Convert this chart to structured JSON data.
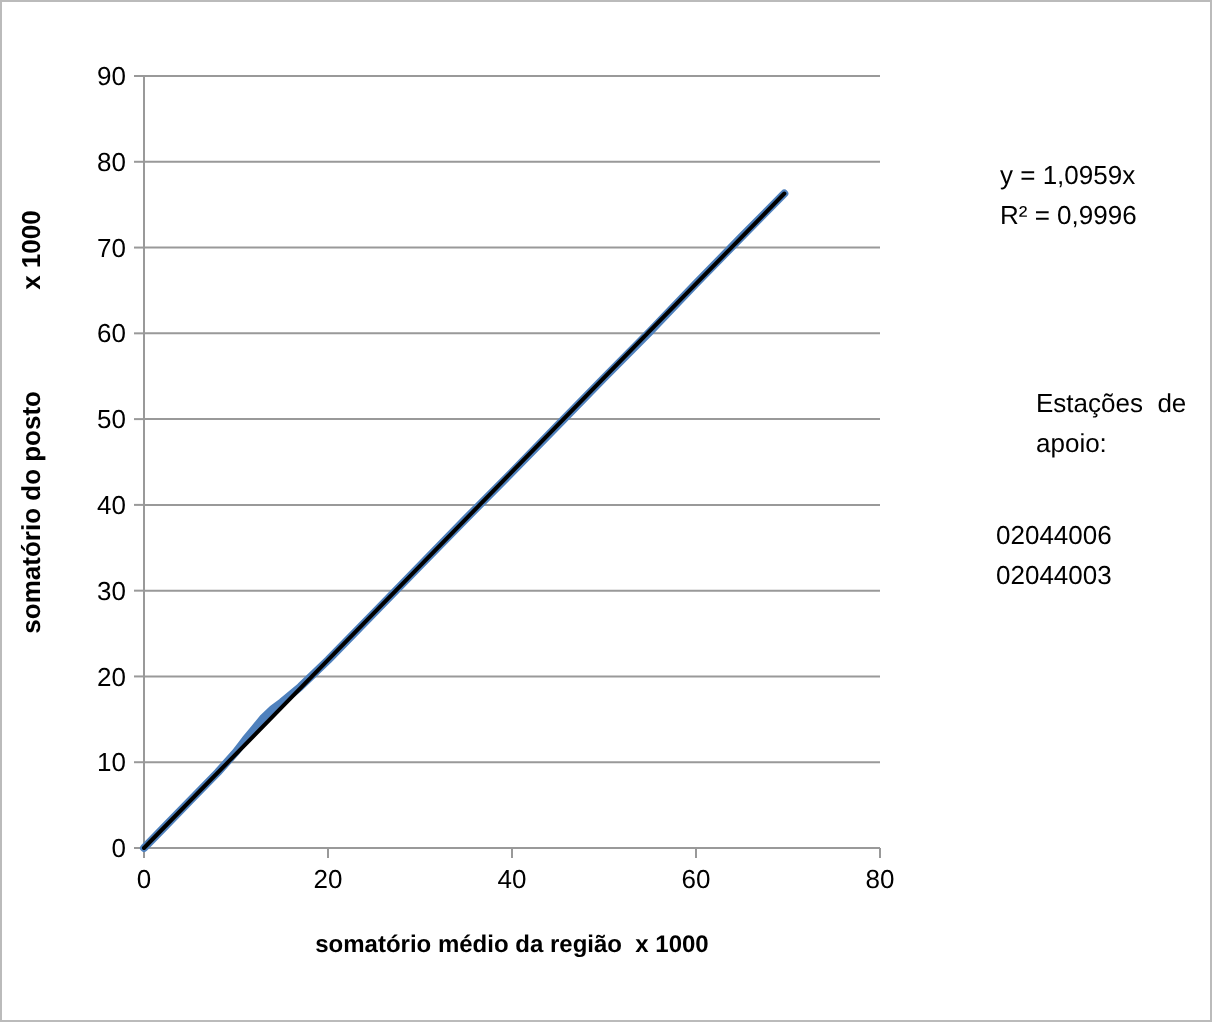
{
  "chart_data": {
    "type": "line",
    "xlabel": "somatório médio da região  x 1000",
    "ylabel": "somatório do posto              x 1000",
    "xlim": [
      0,
      80
    ],
    "ylim": [
      0,
      90
    ],
    "xticks": [
      0,
      20,
      40,
      60,
      80
    ],
    "yticks": [
      0,
      10,
      20,
      30,
      40,
      50,
      60,
      70,
      80,
      90
    ],
    "grid": "y",
    "marker": "none",
    "line_style": "solid",
    "series": [
      {
        "color": "#4f81bd",
        "x": [
          0,
          2,
          5,
          8,
          10,
          11,
          12,
          13,
          14,
          15,
          17,
          20,
          25,
          30,
          35,
          40,
          45,
          50,
          55,
          60,
          65,
          69.6
        ],
        "values": [
          0,
          2.2,
          5.5,
          8.8,
          11.2,
          12.6,
          13.9,
          15.2,
          16.2,
          17.0,
          18.8,
          21.9,
          27.4,
          32.9,
          38.4,
          43.8,
          49.3,
          54.8,
          60.2,
          65.8,
          71.3,
          76.3
        ]
      },
      {
        "color": "#000000",
        "x": [
          0,
          69.6
        ],
        "values": [
          0,
          76.3
        ]
      }
    ],
    "annotations": [
      "y = 1,0959x",
      "R² = 0,9996",
      "Estações  de apoio:",
      "02044006",
      "02044003"
    ]
  }
}
